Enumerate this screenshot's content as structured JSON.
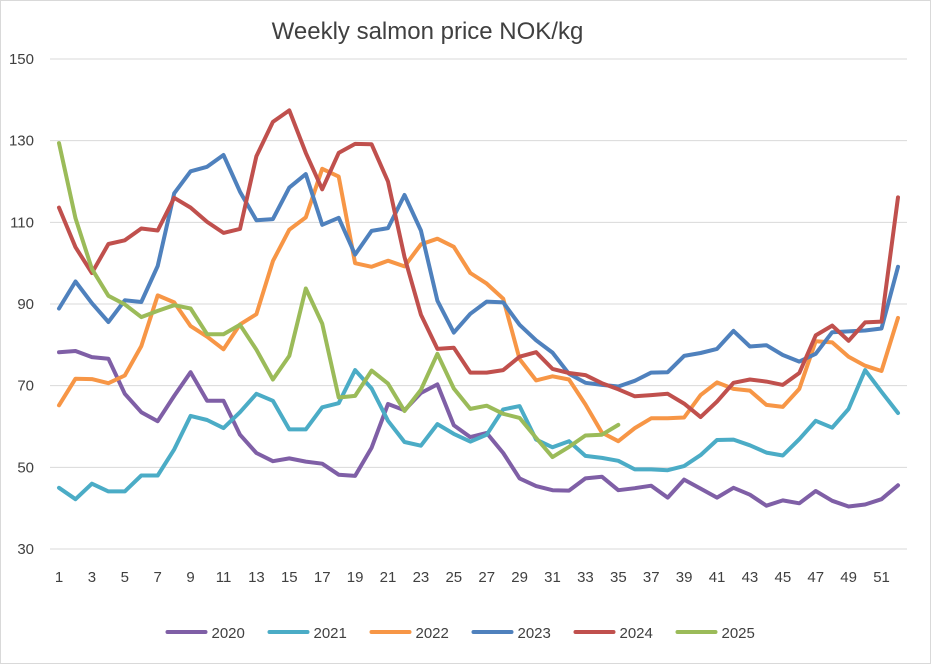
{
  "chart_data": {
    "type": "line",
    "title": "Weekly salmon price NOK/kg",
    "xlabel": "",
    "ylabel": "",
    "xlim": [
      1,
      52
    ],
    "ylim": [
      30,
      150
    ],
    "yticks": [
      30,
      50,
      70,
      90,
      110,
      130,
      150
    ],
    "xticks": [
      1,
      3,
      5,
      7,
      9,
      11,
      13,
      15,
      17,
      19,
      21,
      23,
      25,
      27,
      29,
      31,
      33,
      35,
      37,
      39,
      41,
      43,
      45,
      47,
      49,
      51
    ],
    "grid": "horizontal",
    "legend": "bottom",
    "series": [
      {
        "name": "2020",
        "color": "#7f5fa6",
        "values": [
          78.2,
          78.5,
          77,
          76.6,
          68,
          63.5,
          61.3,
          67.5,
          73.3,
          66.3,
          66.3,
          58,
          53.5,
          51.5,
          52.2,
          51.4,
          50.9,
          48.2,
          47.9,
          54.8,
          65.5,
          64,
          68.2,
          70.3,
          60.3,
          57.4,
          58.4,
          53.5,
          47.3,
          45.4,
          44.4,
          44.3,
          47.3,
          47.7,
          44.4,
          44.9,
          45.5,
          42.6,
          47,
          44.8,
          42.6,
          45,
          43.3,
          40.6,
          41.9,
          41.2,
          44.2,
          41.8,
          40.4,
          40.9,
          42.2,
          45.6
        ]
      },
      {
        "name": "2021",
        "color": "#4bacc6",
        "values": [
          45,
          42.2,
          46,
          44.1,
          44.1,
          48,
          48,
          54.4,
          62.6,
          61.6,
          59.6,
          63.5,
          68,
          66.3,
          59.3,
          59.3,
          64.7,
          65.7,
          73.8,
          69.3,
          61.4,
          56.2,
          55.3,
          60.6,
          58.2,
          56.3,
          58,
          64.2,
          65,
          56.8,
          54.9,
          56.4,
          52.8,
          52.3,
          51.6,
          49.5,
          49.5,
          49.3,
          50.3,
          53,
          56.7,
          56.8,
          55.4,
          53.6,
          52.9,
          56.9,
          61.4,
          59.7,
          64.3,
          73.8,
          68.5,
          63.3
        ]
      },
      {
        "name": "2022",
        "color": "#f79646",
        "values": [
          65.2,
          71.7,
          71.6,
          70.6,
          72.5,
          79.7,
          92.1,
          90.4,
          84.6,
          82,
          78.9,
          85,
          87.5,
          100.5,
          108.2,
          111.2,
          123.1,
          121.2,
          100,
          99.1,
          100.6,
          99.2,
          104.6,
          106,
          104,
          97.6,
          95,
          91.3,
          76.5,
          71.3,
          72.3,
          71.5,
          65.4,
          58.5,
          56.4,
          59.6,
          62,
          62,
          62.2,
          67.7,
          70.8,
          69.2,
          68.8,
          65.3,
          64.8,
          69.2,
          80.9,
          80.6,
          77.1,
          74.9,
          73.6,
          86.6
        ]
      },
      {
        "name": "2023",
        "color": "#4f81bd",
        "values": [
          88.9,
          95.5,
          90.2,
          85.6,
          90.9,
          90.5,
          99.3,
          117.1,
          122.5,
          123.6,
          126.5,
          117.5,
          110.5,
          110.8,
          118.5,
          121.8,
          109.4,
          111.1,
          102.1,
          107.9,
          108.6,
          116.7,
          108,
          90.8,
          83,
          87.6,
          90.6,
          90.4,
          84.9,
          81.1,
          78.1,
          72.9,
          70.7,
          70.2,
          69.8,
          71.2,
          73.2,
          73.3,
          77.3,
          78,
          79,
          83.4,
          79.6,
          79.9,
          77.5,
          75.9,
          77.8,
          83.1,
          83.3,
          83.5,
          84,
          99.1
        ]
      },
      {
        "name": "2024",
        "color": "#c0504d",
        "values": [
          113.6,
          103.9,
          97.6,
          104.7,
          105.6,
          108.5,
          108,
          116,
          113.6,
          110.1,
          107.4,
          108.4,
          126.2,
          134.6,
          137.4,
          127,
          118.1,
          127,
          129.2,
          129.1,
          120,
          101.5,
          87.4,
          79,
          79.3,
          73.2,
          73.2,
          73.8,
          77.1,
          78.2,
          74.1,
          73.1,
          72.6,
          70.6,
          69.1,
          67.4,
          67.7,
          68,
          65.6,
          62.3,
          66.1,
          70.7,
          71.5,
          71,
          70.2,
          73.1,
          82.3,
          84.7,
          81,
          85.5,
          85.7,
          116.1
        ]
      },
      {
        "name": "2025",
        "color": "#9bbb59",
        "values": [
          129.4,
          111,
          98.6,
          92,
          89.9,
          86.8,
          88.3,
          89.7,
          88.9,
          82.6,
          82.6,
          84.9,
          78.8,
          71.5,
          77.3,
          93.8,
          85.2,
          67.1,
          67.5,
          73.7,
          70.5,
          63.8,
          69,
          77.8,
          69.3,
          64.3,
          65.1,
          63.1,
          62.1,
          57.2,
          52.5,
          55,
          57.8,
          58,
          60.4,
          null,
          null,
          null,
          null,
          null,
          null,
          null,
          null,
          null,
          null,
          null,
          null,
          null,
          null,
          null,
          null,
          null
        ]
      }
    ]
  }
}
